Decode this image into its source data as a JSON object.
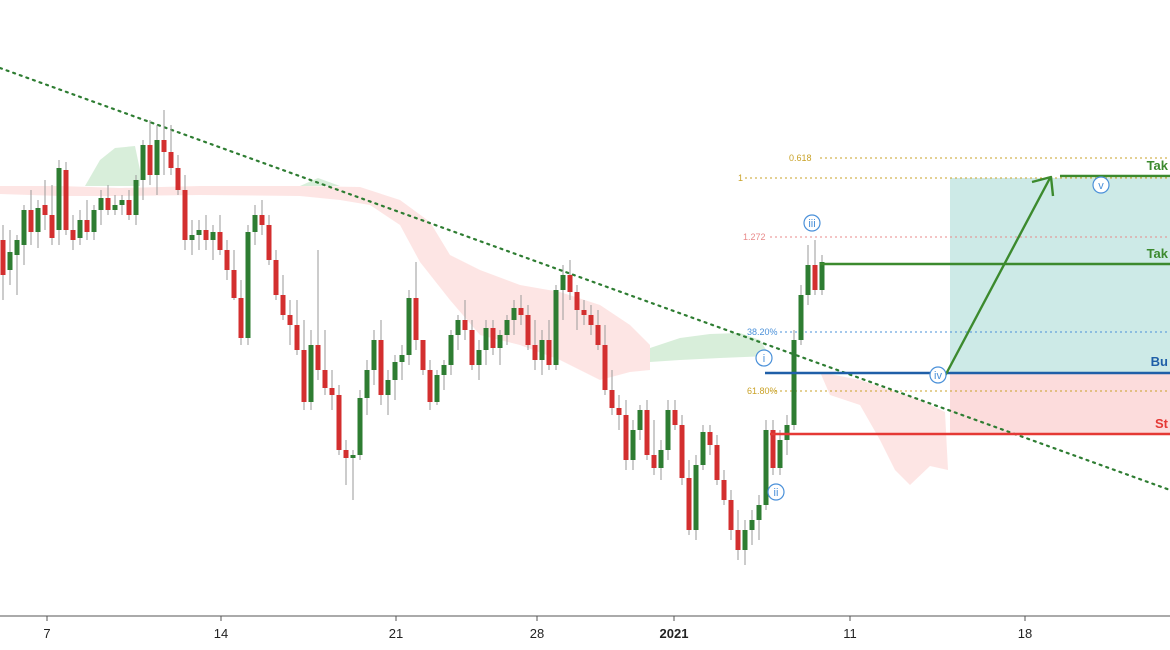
{
  "chart_data": {
    "type": "candlestick",
    "x_ticks": [
      "7",
      "14",
      "21",
      "28",
      "2021",
      "11",
      "18"
    ],
    "colors": {
      "up": "#2e7d32",
      "down": "#d32f2f",
      "trendline": "#2e7d32",
      "cloud_bull": "#d4ecd6",
      "cloud_bear": "#fde0df",
      "tp_zone": "#cdeae7",
      "sl_zone": "#fcdcdc",
      "buy_line": "#1f5fa8",
      "stop_line": "#e53935",
      "tp_line": "#3c8a2e",
      "fib": "#d8a33b",
      "wave": "#4a90d9"
    },
    "fib_levels": [
      {
        "label": "0.618",
        "color": "#c9a227"
      },
      {
        "label": "1",
        "color": "#c9a227"
      },
      {
        "label": "1.272",
        "color": "#e88a8a"
      },
      {
        "label": "38.20%",
        "color": "#4a90d9"
      },
      {
        "label": "61.80%",
        "color": "#c9a227"
      }
    ],
    "trade_levels": [
      {
        "label": "Tak",
        "color": "#3c8a2e"
      },
      {
        "label": "Tak",
        "color": "#3c8a2e"
      },
      {
        "label": "Bu",
        "color": "#1f5fa8"
      },
      {
        "label": "St",
        "color": "#e53935"
      }
    ],
    "wave_labels": [
      "i",
      "ii",
      "iii",
      "iv",
      "v"
    ]
  }
}
